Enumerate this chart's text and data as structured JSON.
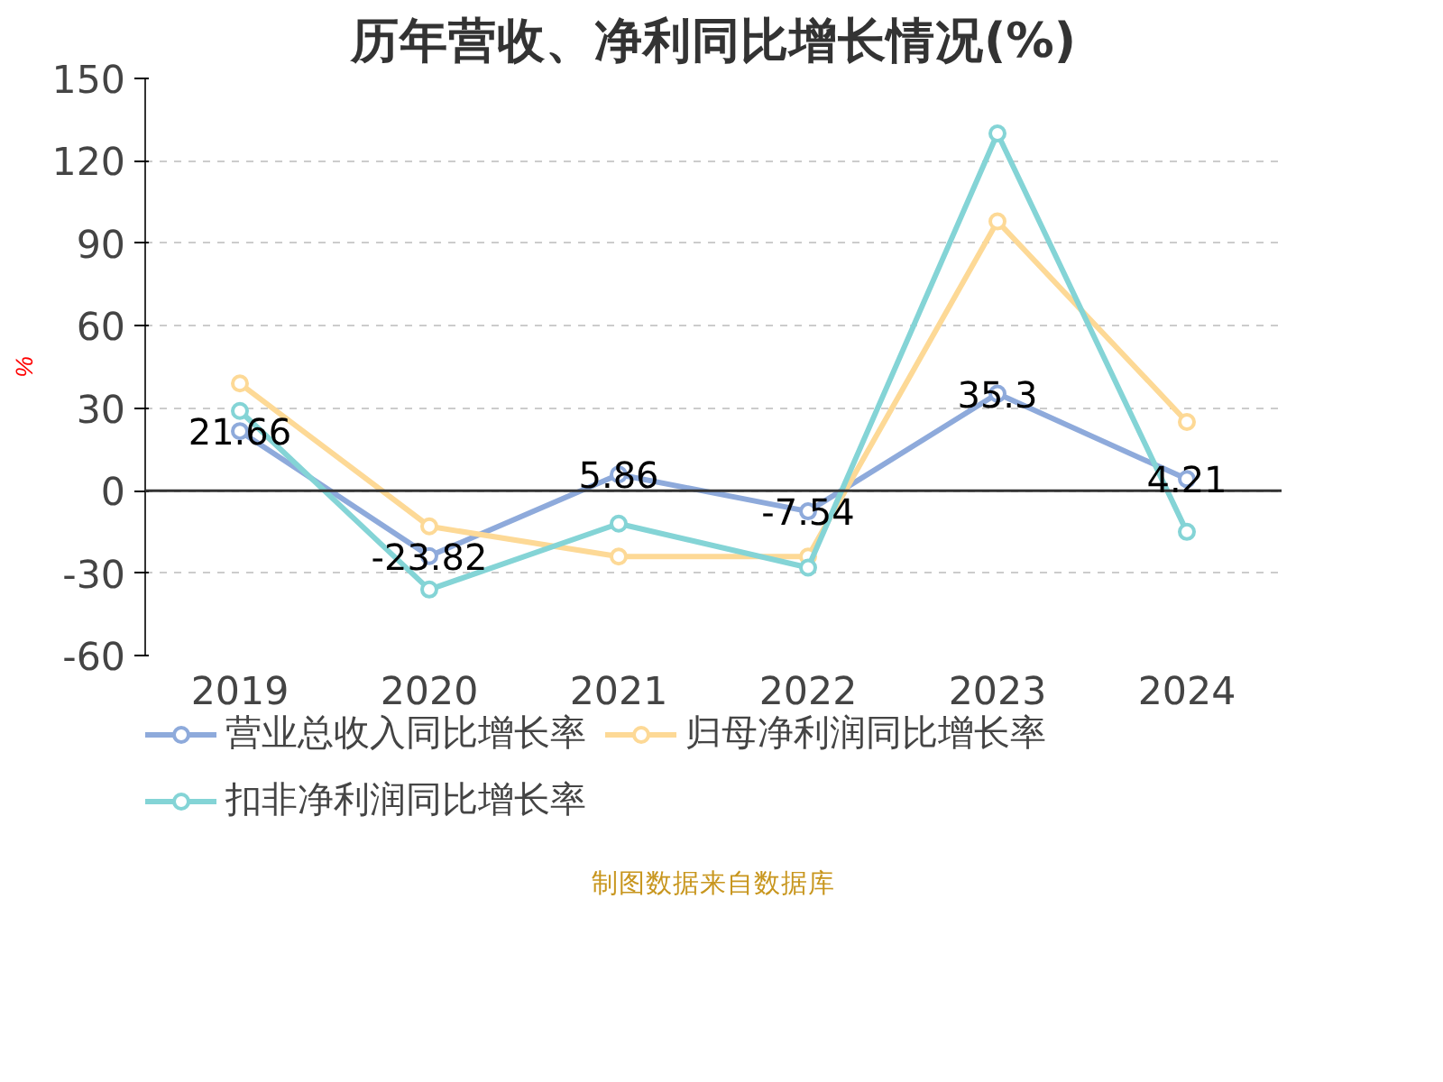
{
  "chart_data": {
    "type": "line",
    "title": "历年营收、净利同比增长情况(%)",
    "ylabel": "%",
    "categories": [
      "2019",
      "2020",
      "2021",
      "2022",
      "2023",
      "2024"
    ],
    "series": [
      {
        "name": "营业总收入同比增长率",
        "color": "#8eaadb",
        "values": [
          21.66,
          -23.82,
          5.86,
          -7.54,
          35.3,
          4.21
        ],
        "value_labels": [
          "21.66",
          "-23.82",
          "5.86",
          "-7.54",
          "35.3",
          "4.21"
        ]
      },
      {
        "name": "归母净利润同比增长率",
        "color": "#fdd996",
        "values": [
          39,
          -13,
          -24,
          -24,
          98,
          25
        ]
      },
      {
        "name": "扣非净利润同比增长率",
        "color": "#84d4d6",
        "values": [
          29,
          -36,
          -12,
          -28,
          130,
          -15
        ]
      }
    ],
    "ylim": [
      -60,
      150
    ],
    "yticks": [
      -60,
      -30,
      0,
      30,
      60,
      90,
      120,
      150
    ],
    "grid": "y",
    "legend": "bottom",
    "marker": "circle",
    "line_style": "solid",
    "annotations": [
      "制图数据来自数据库"
    ]
  }
}
